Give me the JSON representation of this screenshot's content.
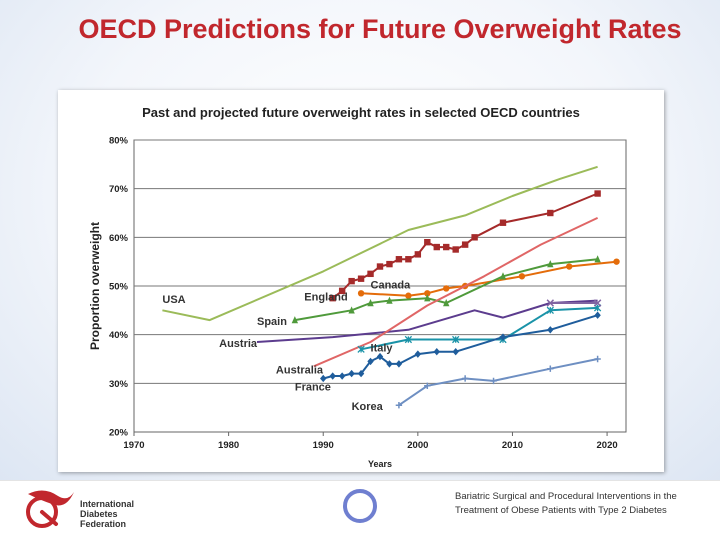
{
  "slide": {
    "title": "OECD Predictions for Future Overweight Rates"
  },
  "footer": {
    "org_name_lines": [
      "International",
      "Diabetes",
      "Federation"
    ],
    "note": "Bariatric Surgical and Procedural Interventions in the Treatment of Obese Patients with Type 2 Diabetes"
  },
  "chart_data": {
    "type": "line",
    "title": "Past and projected future overweight rates in selected OECD countries",
    "xlabel": "Years",
    "ylabel": "Proportion overweight",
    "xlim": [
      1970,
      2022
    ],
    "ylim": [
      20,
      80
    ],
    "x_ticks": [
      1970,
      1980,
      1990,
      2000,
      2010,
      2020
    ],
    "y_ticks": [
      20,
      30,
      40,
      50,
      60,
      70,
      80
    ],
    "y_tick_suffix": "%",
    "grid": true,
    "series": [
      {
        "name": "USA",
        "color": "#9bbb59",
        "marker": "none",
        "x": [
          1973,
          1978,
          1990,
          1999,
          2005,
          2010,
          2015,
          2019
        ],
        "y": [
          45,
          43,
          53,
          61.5,
          64.5,
          68.5,
          72,
          74.5
        ],
        "label_pos": [
          1973,
          46.5
        ]
      },
      {
        "name": "England",
        "color": "#a52a2a",
        "marker": "square",
        "x": [
          1991,
          1992,
          1993,
          1994,
          1995,
          1996,
          1997,
          1998,
          1999,
          2000,
          2001,
          2002,
          2003,
          2004,
          2005,
          2006,
          2009,
          2014,
          2019
        ],
        "y": [
          47.5,
          49,
          51,
          51.5,
          52.5,
          54,
          54.5,
          55.5,
          55.5,
          56.5,
          59,
          58,
          58,
          57.5,
          58.5,
          60,
          63,
          65,
          69
        ],
        "label_pos": [
          1988,
          47
        ]
      },
      {
        "name": "Canada",
        "color": "#e46c0a",
        "marker": "circle",
        "x": [
          1994,
          1999,
          2001,
          2003,
          2005,
          2011,
          2016,
          2021
        ],
        "y": [
          48.5,
          48,
          48.5,
          49.5,
          50,
          52,
          54,
          55
        ],
        "label_pos": [
          1995,
          49.5
        ]
      },
      {
        "name": "Spain",
        "color": "#4f9a3b",
        "marker": "triangle",
        "x": [
          1987,
          1993,
          1995,
          1997,
          2001,
          2003,
          2009,
          2014,
          2019
        ],
        "y": [
          43,
          45,
          46.5,
          47,
          47.5,
          46.5,
          52,
          54.5,
          55.5
        ],
        "label_pos": [
          1983,
          42
        ]
      },
      {
        "name": "Austria",
        "color": "#5c3c8e",
        "marker": "none",
        "x": [
          1983,
          1991,
          1999,
          2006,
          2009,
          2014,
          2019
        ],
        "y": [
          38.5,
          39.5,
          41,
          45,
          43.5,
          46.5,
          47
        ],
        "label_pos": [
          1979,
          37.5
        ]
      },
      {
        "name": "Australia",
        "color": "#e06666",
        "marker": "none",
        "x": [
          1989,
          1995,
          2001,
          2007,
          2013,
          2019
        ],
        "y": [
          33.5,
          38.5,
          46,
          52,
          58.5,
          64
        ],
        "label_pos": [
          1985,
          32
        ]
      },
      {
        "name": "Italy",
        "color": "#1a93a8",
        "marker": "star",
        "x": [
          1994,
          1999,
          2004,
          2009,
          2014,
          2019
        ],
        "y": [
          37,
          39,
          39,
          39,
          45,
          45.5
        ],
        "label_pos": [
          1995,
          36.5
        ]
      },
      {
        "name": "France",
        "color": "#1f5d9c",
        "marker": "diamond",
        "x": [
          1990,
          1991,
          1992,
          1993,
          1994,
          1995,
          1996,
          1997,
          1998,
          2000,
          2002,
          2004,
          2009,
          2014,
          2019
        ],
        "y": [
          31,
          31.5,
          31.5,
          32,
          32,
          34.5,
          35.5,
          34,
          34,
          36,
          36.5,
          36.5,
          39.5,
          41,
          44
        ],
        "label_pos": [
          1987,
          28.5
        ]
      },
      {
        "name": "Korea",
        "color": "#6e8fc2",
        "marker": "plus",
        "x": [
          1998,
          2001,
          2005,
          2008,
          2014,
          2019
        ],
        "y": [
          25.5,
          29.5,
          31,
          30.5,
          33,
          35
        ],
        "label_pos": [
          1993,
          24.5
        ]
      },
      {
        "name": "",
        "color": "#8064a2",
        "marker": "x",
        "x": [
          2014,
          2019
        ],
        "y": [
          46.5,
          46.5
        ],
        "label_pos": null
      }
    ]
  }
}
